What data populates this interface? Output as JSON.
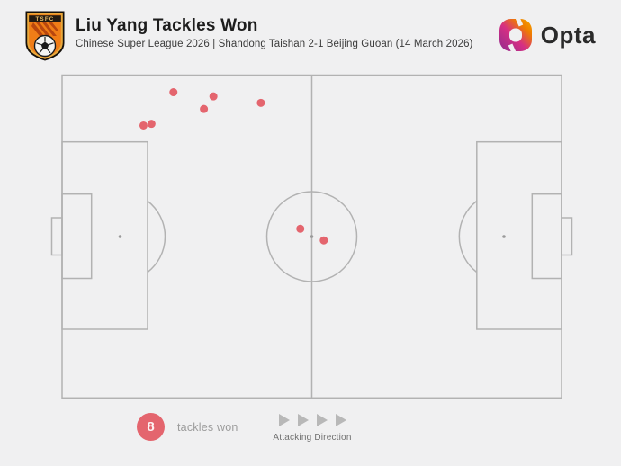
{
  "header": {
    "title": "Liu Yang Tackles Won",
    "subtitle": "Chinese Super League 2026 | Shandong Taishan 2-1 Beijing Guoan (14 March 2026)",
    "badge_text": "TSFC",
    "brand": "Opta"
  },
  "colors": {
    "background": "#f0f0f1",
    "pitch_line": "#b2b2b2",
    "dot": "#e4656e",
    "legend_count_bg": "#e4656e",
    "legend_text": "#9c9c9c",
    "arrow": "#b8b8b8"
  },
  "legend": {
    "count_label": "8",
    "event_label": "tackles won",
    "attacking_label": "Attacking Direction"
  },
  "chart_data": {
    "type": "scatter",
    "title": "Liu Yang Tackles Won",
    "event_type": "tackles won",
    "count": 8,
    "coordinate_system": "percent of pitch; x: 0=own goal line to 100=opponent goal line (attacking left to right), y: 0=top touchline to 100=bottom touchline",
    "points": [
      {
        "x": 22.3,
        "y": 5.3
      },
      {
        "x": 30.3,
        "y": 6.6
      },
      {
        "x": 28.4,
        "y": 10.5
      },
      {
        "x": 39.8,
        "y": 8.6
      },
      {
        "x": 16.3,
        "y": 15.6
      },
      {
        "x": 17.9,
        "y": 15.1
      },
      {
        "x": 47.7,
        "y": 47.6
      },
      {
        "x": 52.4,
        "y": 51.2
      }
    ],
    "dot_radius_px": 4.5
  }
}
